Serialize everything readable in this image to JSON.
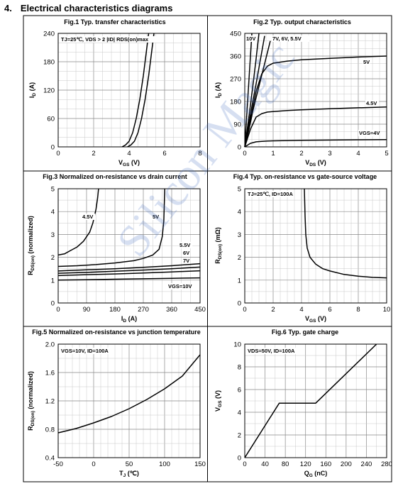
{
  "section": {
    "number": "4.",
    "title": "Electrical characteristics diagrams"
  },
  "watermark": "Silicon Magic",
  "chart_data": [
    {
      "type": "line",
      "title": "Fig.1 Typ. transfer characteristics",
      "xlabel": "VGS (V)",
      "ylabel": "ID (A)",
      "xlim": [
        0,
        8
      ],
      "ylim": [
        0,
        240
      ],
      "xticks": [
        "0",
        "2",
        "4",
        "6",
        "8"
      ],
      "yticks": [
        "0",
        "60",
        "120",
        "180",
        "240"
      ],
      "x_grid_step": 0.5,
      "y_grid_step": 20,
      "annotations": [
        {
          "text": "TJ=25℃, VDS > 2 |ID| RDS(on)max"
        }
      ],
      "series": [
        {
          "x": [
            3.6,
            3.8,
            4.0,
            4.2,
            4.4,
            4.6,
            4.8,
            5.0,
            5.1
          ],
          "y": [
            0,
            4,
            12,
            30,
            60,
            100,
            150,
            210,
            240
          ]
        },
        {
          "x": [
            3.9,
            4.1,
            4.3,
            4.5,
            4.7,
            4.9,
            5.1,
            5.3,
            5.4
          ],
          "y": [
            0,
            4,
            12,
            30,
            60,
            100,
            150,
            210,
            240
          ]
        }
      ]
    },
    {
      "type": "line",
      "title": "Fig.2 Typ. output characteristics",
      "xlabel": "VDS (V)",
      "ylabel": "ID (A)",
      "xlim": [
        0,
        5
      ],
      "ylim": [
        0,
        450
      ],
      "xticks": [
        "0",
        "1",
        "2",
        "3",
        "4",
        "5"
      ],
      "yticks": [
        "0",
        "90",
        "180",
        "270",
        "360",
        "450"
      ],
      "x_grid_step": 0.25,
      "y_grid_step": 30,
      "annotations": [
        {
          "text": "10V"
        },
        {
          "text": "7V, 6V, 5.5V"
        },
        {
          "text": "5V"
        },
        {
          "text": "4.5V"
        },
        {
          "text": "VGS=4V"
        }
      ],
      "series": [
        {
          "name": "10V",
          "x": [
            0,
            0.05,
            0.1,
            0.15,
            0.2,
            0.25
          ],
          "y": [
            0,
            90,
            180,
            270,
            360,
            450
          ]
        },
        {
          "name": "7V",
          "x": [
            0,
            0.1,
            0.2,
            0.3,
            0.4,
            0.5
          ],
          "y": [
            0,
            80,
            165,
            255,
            350,
            450
          ]
        },
        {
          "name": "6V",
          "x": [
            0,
            0.12,
            0.25,
            0.4,
            0.55,
            0.7
          ],
          "y": [
            0,
            75,
            160,
            250,
            345,
            440
          ]
        },
        {
          "name": "5.5V",
          "x": [
            0,
            0.15,
            0.3,
            0.5,
            0.7,
            0.9
          ],
          "y": [
            0,
            70,
            150,
            240,
            330,
            420
          ]
        },
        {
          "name": "5V",
          "x": [
            0,
            0.2,
            0.4,
            0.6,
            0.8,
            1.0,
            1.5,
            2,
            3,
            4,
            5
          ],
          "y": [
            0,
            110,
            220,
            290,
            320,
            332,
            340,
            345,
            351,
            356,
            360
          ]
        },
        {
          "name": "4.5V",
          "x": [
            0,
            0.2,
            0.4,
            0.6,
            0.8,
            1.0,
            1.5,
            2,
            3,
            4,
            5
          ],
          "y": [
            0,
            70,
            118,
            132,
            138,
            140,
            144,
            147,
            151,
            155,
            158
          ]
        },
        {
          "name": "4V",
          "x": [
            0,
            0.2,
            0.4,
            0.6,
            0.8,
            1.0,
            1.5,
            2,
            3,
            4,
            5
          ],
          "y": [
            0,
            14,
            20,
            22,
            23,
            24,
            25,
            26,
            27,
            28,
            29
          ]
        }
      ]
    },
    {
      "type": "line",
      "title": "Fig.3 Normalized on-resistance vs drain current",
      "xlabel": "ID (A)",
      "ylabel": "RDS(on) (normalized)",
      "xlim": [
        0,
        450
      ],
      "ylim": [
        0,
        5
      ],
      "xticks": [
        "0",
        "90",
        "180",
        "270",
        "360",
        "450"
      ],
      "yticks": [
        "0",
        "1",
        "2",
        "3",
        "4",
        "5"
      ],
      "x_grid_step": 30,
      "y_grid_step": 0.5,
      "annotations": [
        {
          "text": "4.5V"
        },
        {
          "text": "5V"
        },
        {
          "text": "5.5V"
        },
        {
          "text": "6V"
        },
        {
          "text": "7V"
        },
        {
          "text": "VGS=10V"
        }
      ],
      "series": [
        {
          "name": "4.5V",
          "x": [
            0,
            20,
            40,
            60,
            80,
            100,
            110,
            120,
            125,
            128
          ],
          "y": [
            2.1,
            2.15,
            2.3,
            2.45,
            2.7,
            3.1,
            3.5,
            4.1,
            4.6,
            5
          ]
        },
        {
          "name": "5V",
          "x": [
            0,
            60,
            120,
            180,
            240,
            270,
            300,
            320,
            330,
            335,
            338
          ],
          "y": [
            1.6,
            1.63,
            1.68,
            1.75,
            1.85,
            1.95,
            2.1,
            2.35,
            2.9,
            3.6,
            5
          ]
        },
        {
          "name": "5.5V",
          "x": [
            0,
            90,
            180,
            270,
            360,
            450
          ],
          "y": [
            1.4,
            1.45,
            1.5,
            1.56,
            1.63,
            1.72
          ]
        },
        {
          "name": "6V",
          "x": [
            0,
            90,
            180,
            270,
            360,
            450
          ],
          "y": [
            1.3,
            1.34,
            1.39,
            1.44,
            1.5,
            1.57
          ]
        },
        {
          "name": "7V",
          "x": [
            0,
            90,
            180,
            270,
            360,
            450
          ],
          "y": [
            1.2,
            1.24,
            1.27,
            1.31,
            1.36,
            1.41
          ]
        },
        {
          "name": "10V",
          "x": [
            0,
            90,
            180,
            270,
            360,
            450
          ],
          "y": [
            1.0,
            1.02,
            1.04,
            1.06,
            1.08,
            1.1
          ]
        }
      ]
    },
    {
      "type": "line",
      "title": "Fig.4 Typ. on-resistance vs gate-source voltage",
      "xlabel": "VGS (V)",
      "ylabel": "RDS(on) (mΩ)",
      "xlim": [
        0,
        10
      ],
      "ylim": [
        0,
        5
      ],
      "xticks": [
        "0",
        "2",
        "4",
        "6",
        "8",
        "10"
      ],
      "yticks": [
        "0",
        "1",
        "2",
        "3",
        "4",
        "5"
      ],
      "x_grid_step": 0.5,
      "y_grid_step": 0.5,
      "annotations": [
        {
          "text": "TJ=25℃, ID=100A"
        }
      ],
      "series": [
        {
          "x": [
            4.2,
            4.25,
            4.3,
            4.4,
            4.6,
            5,
            5.5,
            6,
            7,
            8,
            9,
            10
          ],
          "y": [
            5,
            3.8,
            3.0,
            2.4,
            2.0,
            1.7,
            1.5,
            1.4,
            1.25,
            1.17,
            1.12,
            1.1
          ]
        }
      ]
    },
    {
      "type": "line",
      "title": "Fig.5 Normalized on-resistance vs junction temperature",
      "xlabel": "TJ (℃)",
      "ylabel": "RDS(on) (normalized)",
      "xlim": [
        -50,
        150
      ],
      "ylim": [
        0.4,
        2.0
      ],
      "xticks": [
        "-50",
        "0",
        "50",
        "100",
        "150"
      ],
      "yticks": [
        "0.4",
        "0.8",
        "1.2",
        "1.6",
        "2.0"
      ],
      "x_grid_step": 10,
      "y_grid_step": 0.2,
      "annotations": [
        {
          "text": "VGS=10V, ID=100A"
        }
      ],
      "series": [
        {
          "x": [
            -50,
            -25,
            0,
            25,
            50,
            75,
            100,
            125,
            150
          ],
          "y": [
            0.75,
            0.81,
            0.89,
            0.98,
            1.09,
            1.22,
            1.37,
            1.55,
            1.85
          ]
        }
      ]
    },
    {
      "type": "line",
      "title": "Fig.6 Typ. gate charge",
      "xlabel": "QG (nC)",
      "ylabel": "VGS (V)",
      "xlim": [
        0,
        280
      ],
      "ylim": [
        0,
        10
      ],
      "xticks": [
        "0",
        "40",
        "80",
        "120",
        "160",
        "200",
        "240",
        "280"
      ],
      "yticks": [
        "0",
        "2",
        "4",
        "6",
        "8",
        "10"
      ],
      "x_grid_step": 20,
      "y_grid_step": 1,
      "annotations": [
        {
          "text": "VDS=50V, ID=100A"
        }
      ],
      "series": [
        {
          "x": [
            0,
            68,
            140,
            260
          ],
          "y": [
            0,
            4.8,
            4.8,
            10
          ]
        }
      ]
    }
  ]
}
